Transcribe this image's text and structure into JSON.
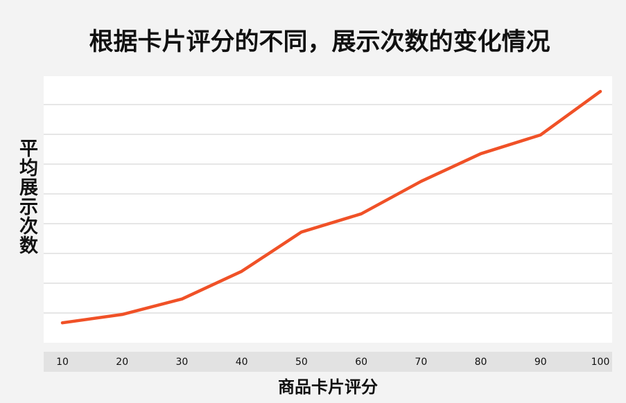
{
  "chart_data": {
    "type": "line",
    "title": "根据卡片评分的不同，展示次数的变化情况",
    "x_label": "商品卡片评分",
    "y_label": "平均展示次数",
    "x": [
      10,
      20,
      30,
      40,
      50,
      60,
      70,
      80,
      90,
      100
    ],
    "series": [
      {
        "name": "平均展示次数",
        "color": "#f05127",
        "values": [
          0.67,
          0.95,
          1.47,
          2.4,
          3.72,
          4.33,
          5.42,
          6.35,
          6.98,
          8.44
        ]
      }
    ],
    "xlim": [
      10,
      100
    ],
    "xticks": [
      10,
      20,
      30,
      40,
      50,
      60,
      70,
      80,
      90,
      100
    ],
    "ylim": [
      0,
      9
    ],
    "yticks": [
      1,
      2,
      3,
      4,
      5,
      6,
      7,
      8
    ],
    "grid": true
  }
}
